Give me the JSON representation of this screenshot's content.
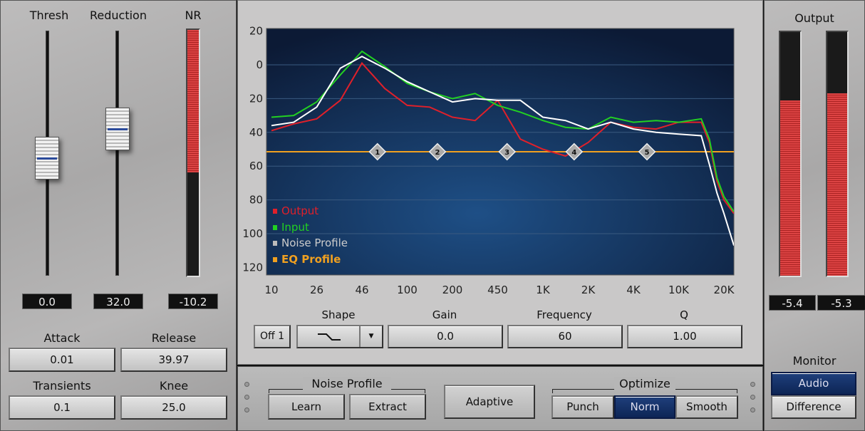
{
  "left": {
    "thresh": {
      "label": "Thresh",
      "value": "0.0",
      "level": 0.48
    },
    "reduction": {
      "label": "Reduction",
      "value": "32.0",
      "level": 0.6
    },
    "nr": {
      "label": "NR",
      "value": "-10.2",
      "level": 0.42
    },
    "attack": {
      "label": "Attack",
      "value": "0.01"
    },
    "release": {
      "label": "Release",
      "value": "39.97"
    },
    "transients": {
      "label": "Transients",
      "value": "0.1"
    },
    "knee": {
      "label": "Knee",
      "value": "25.0"
    }
  },
  "right": {
    "output_label": "Output",
    "meters": [
      {
        "value": "-5.4",
        "level": 0.72
      },
      {
        "value": "-5.3",
        "level": 0.75
      }
    ],
    "monitor": {
      "label": "Monitor",
      "options": [
        "Audio",
        "Difference"
      ],
      "selected": "Audio"
    }
  },
  "eq": {
    "band_button": "Off 1",
    "shape_label": "Shape",
    "gain_label": "Gain",
    "gain_value": "0.0",
    "frequency_label": "Frequency",
    "frequency_value": "60",
    "q_label": "Q",
    "q_value": "1.00"
  },
  "bottom": {
    "noise_profile": {
      "label": "Noise Profile",
      "learn": "Learn",
      "extract": "Extract"
    },
    "adaptive": "Adaptive",
    "optimize": {
      "label": "Optimize",
      "options": [
        "Punch",
        "Norm",
        "Smooth"
      ],
      "selected": "Norm"
    }
  },
  "chart_data": {
    "type": "line",
    "x_tick_labels": [
      "10",
      "26",
      "46",
      "100",
      "200",
      "450",
      "1K",
      "2K",
      "4K",
      "10K",
      "20K"
    ],
    "x_ticks": [
      10,
      26,
      46,
      100,
      200,
      450,
      1000,
      2000,
      4000,
      10000,
      20000
    ],
    "y_tick_labels": [
      "20",
      "0",
      "20",
      "40",
      "60",
      "80",
      "100",
      "120"
    ],
    "y_ticks": [
      20,
      0,
      -20,
      -40,
      -60,
      -80,
      -100,
      -120
    ],
    "ylim": [
      -121,
      22
    ],
    "grid": true,
    "legend_placement": "bottom-left",
    "x": [
      10,
      16,
      26,
      35,
      46,
      68,
      100,
      141,
      200,
      300,
      450,
      671,
      1000,
      1414,
      2000,
      2828,
      4000,
      6325,
      10000,
      14142,
      16000,
      18000,
      20000,
      23300
    ],
    "series": [
      {
        "name": "Output",
        "color": "#e0202a",
        "values": [
          -39,
          -35,
          -32,
          -21,
          1,
          -14,
          -24,
          -25,
          -31,
          -33,
          -21,
          -44,
          -50,
          -54,
          -46,
          -34,
          -37,
          -38,
          -34,
          -34,
          -46,
          -69,
          -80,
          -88
        ]
      },
      {
        "name": "Input",
        "color": "#22d022",
        "values": [
          -31,
          -30,
          -22,
          -6,
          8,
          -1,
          -11,
          -16,
          -20,
          -17,
          -24,
          -28,
          -33,
          -37,
          -38,
          -31,
          -34,
          -33,
          -34,
          -32,
          -44,
          -67,
          -78,
          -87
        ]
      },
      {
        "name": "Noise Profile",
        "color": "#ffffff",
        "values": [
          -36,
          -34,
          -25,
          -2,
          5,
          -2,
          -10,
          -16,
          -22,
          -20,
          -21,
          -21,
          -31,
          -33,
          -38,
          -34,
          -38,
          -40,
          -41,
          -42,
          -59,
          -76,
          -88,
          -107
        ]
      },
      {
        "name": "EQ Profile",
        "color": "#f0a020",
        "level": -51.5,
        "nodes": [
          {
            "label": "1",
            "freq": 60
          },
          {
            "label": "2",
            "freq": 159
          },
          {
            "label": "3",
            "freq": 531
          },
          {
            "label": "4",
            "freq": 1613
          },
          {
            "label": "5",
            "freq": 5264
          }
        ]
      }
    ]
  }
}
